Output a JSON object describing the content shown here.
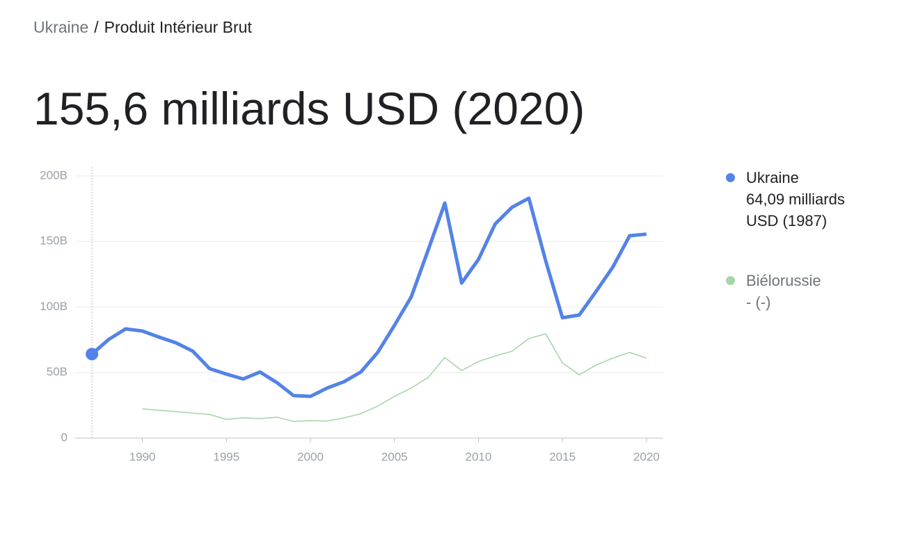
{
  "breadcrumb": {
    "parent": "Ukraine",
    "separator": "/",
    "current": "Produit Intérieur Brut"
  },
  "headline": "155,6 milliards USD (2020)",
  "chart_data": {
    "type": "line",
    "x": [
      1987,
      1988,
      1989,
      1990,
      1991,
      1992,
      1993,
      1994,
      1995,
      1996,
      1997,
      1998,
      1999,
      2000,
      2001,
      2002,
      2003,
      2004,
      2005,
      2006,
      2007,
      2008,
      2009,
      2010,
      2011,
      2012,
      2013,
      2014,
      2015,
      2016,
      2017,
      2018,
      2019,
      2020
    ],
    "series": [
      {
        "name": "Ukraine",
        "color": "#5383e8",
        "legend_value": "64,09 milliards USD (1987)",
        "values": [
          64.09,
          75.3,
          83.3,
          81.7,
          77,
          72.7,
          66.3,
          53,
          48.8,
          45.1,
          50.4,
          42.4,
          32.4,
          31.8,
          38.2,
          43,
          50.4,
          65.3,
          86,
          107.7,
          143.2,
          179.3,
          118.3,
          136.3,
          163.4,
          176.1,
          183,
          135.3,
          91.8,
          93.9,
          111.9,
          130.5,
          154.4,
          155.6
        ]
      },
      {
        "name": "Biélorussie",
        "color": "#a8d5a9",
        "legend_value": "- (-)",
        "values": [
          null,
          null,
          null,
          22.3,
          21.2,
          20.2,
          19.1,
          18,
          14.3,
          15.4,
          14.9,
          15.9,
          12.7,
          13.3,
          13,
          15.4,
          18.6,
          24.4,
          31.8,
          38.2,
          46.2,
          61.5,
          51.5,
          58.4,
          62.6,
          66.3,
          75.9,
          79.6,
          57.3,
          48.3,
          55.7,
          61,
          65.3,
          61
        ]
      }
    ],
    "xlim": [
      1986,
      2021
    ],
    "xticks": [
      1990,
      1995,
      2000,
      2005,
      2010,
      2015,
      2020
    ],
    "ylim": [
      0,
      200
    ],
    "yticks": [
      0,
      {
        "value": 50,
        "label": "50B"
      },
      {
        "value": 100,
        "label": "100B"
      },
      {
        "value": 150,
        "label": "150B"
      },
      {
        "value": 200,
        "label": "200B"
      }
    ],
    "grid": true
  }
}
